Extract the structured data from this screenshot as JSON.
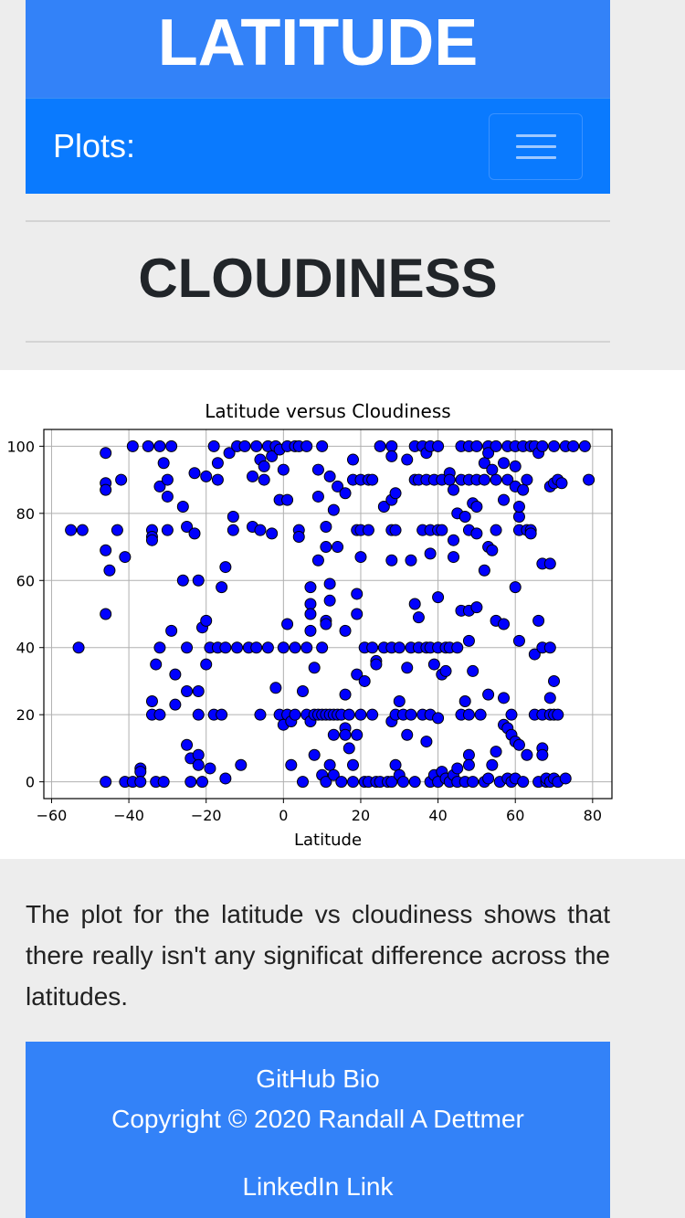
{
  "header": {
    "title": "LATITUDE"
  },
  "navbar": {
    "brand": "Plots:",
    "toggle_icon": "hamburger-icon"
  },
  "section": {
    "title": "CLOUDINESS"
  },
  "description": "The plot for the latitude vs cloudiness shows that there really isn't any significat difference across the latitudes.",
  "footer": {
    "github_link": "GitHub Bio",
    "copyright": "Copyright © 2020 Randall A Dettmer",
    "linkedin_link": "LinkedIn Link"
  },
  "colors": {
    "banner": "#3382f8",
    "navbar": "#0a7afe",
    "marker": "#0000ff",
    "marker_edge": "#000000"
  },
  "chart_data": {
    "type": "scatter",
    "title": "Latitude versus Cloudiness",
    "xlabel": "Latitude",
    "ylabel": "",
    "xlim": [
      -62,
      85
    ],
    "ylim": [
      -5,
      105
    ],
    "xticks": [
      -60,
      -40,
      -20,
      0,
      20,
      40,
      60,
      80
    ],
    "yticks": [
      0,
      20,
      40,
      60,
      80,
      100
    ],
    "grid": true,
    "points": [
      [
        -55,
        75
      ],
      [
        -52,
        75
      ],
      [
        -53,
        40
      ],
      [
        -46,
        98
      ],
      [
        -46,
        89
      ],
      [
        -46,
        87
      ],
      [
        -46,
        69
      ],
      [
        -45,
        63
      ],
      [
        -46,
        50
      ],
      [
        -46,
        0
      ],
      [
        -43,
        75
      ],
      [
        -42,
        90
      ],
      [
        -41,
        67
      ],
      [
        -41,
        0
      ],
      [
        -39,
        100
      ],
      [
        -39,
        0
      ],
      [
        -37,
        4
      ],
      [
        -37,
        3
      ],
      [
        -37,
        0
      ],
      [
        -35,
        100
      ],
      [
        -34,
        75
      ],
      [
        -34,
        73
      ],
      [
        -34,
        72
      ],
      [
        -34,
        24
      ],
      [
        -34,
        20
      ],
      [
        -33,
        35
      ],
      [
        -33,
        0
      ],
      [
        -32,
        100
      ],
      [
        -32,
        88
      ],
      [
        -32,
        40
      ],
      [
        -32,
        20
      ],
      [
        -31,
        95
      ],
      [
        -31,
        0
      ],
      [
        -30,
        90
      ],
      [
        -30,
        85
      ],
      [
        -30,
        75
      ],
      [
        -29,
        100
      ],
      [
        -29,
        45
      ],
      [
        -28,
        32
      ],
      [
        -28,
        23
      ],
      [
        -26,
        82
      ],
      [
        -26,
        60
      ],
      [
        -25,
        76
      ],
      [
        -25,
        40
      ],
      [
        -25,
        27
      ],
      [
        -25,
        11
      ],
      [
        -24,
        7
      ],
      [
        -24,
        0
      ],
      [
        -23,
        92
      ],
      [
        -23,
        74
      ],
      [
        -22,
        60
      ],
      [
        -22,
        27
      ],
      [
        -22,
        20
      ],
      [
        -22,
        8
      ],
      [
        -22,
        5
      ],
      [
        -21,
        46
      ],
      [
        -21,
        0
      ],
      [
        -20,
        91
      ],
      [
        -20,
        48
      ],
      [
        -20,
        35
      ],
      [
        -19,
        40
      ],
      [
        -19,
        4
      ],
      [
        -18,
        100
      ],
      [
        -18,
        20
      ],
      [
        -17,
        95
      ],
      [
        -17,
        90
      ],
      [
        -17,
        40
      ],
      [
        -16,
        58
      ],
      [
        -16,
        20
      ],
      [
        -15,
        64
      ],
      [
        -15,
        40
      ],
      [
        -15,
        1
      ],
      [
        -14,
        98
      ],
      [
        -13,
        79
      ],
      [
        -13,
        75
      ],
      [
        -12,
        100
      ],
      [
        -12,
        40
      ],
      [
        -11,
        5
      ],
      [
        -10,
        100
      ],
      [
        -9,
        40
      ],
      [
        -8,
        91
      ],
      [
        -8,
        76
      ],
      [
        -7,
        100
      ],
      [
        -7,
        40
      ],
      [
        -6,
        96
      ],
      [
        -6,
        75
      ],
      [
        -6,
        20
      ],
      [
        -5,
        94
      ],
      [
        -5,
        90
      ],
      [
        -4,
        100
      ],
      [
        -4,
        40
      ],
      [
        -3,
        74
      ],
      [
        -3,
        97
      ],
      [
        -2,
        100
      ],
      [
        -2,
        28
      ],
      [
        -1,
        99
      ],
      [
        -1,
        84
      ],
      [
        -1,
        20
      ],
      [
        0,
        93
      ],
      [
        0,
        40
      ],
      [
        0,
        17
      ],
      [
        1,
        100
      ],
      [
        1,
        47
      ],
      [
        1,
        84
      ],
      [
        1,
        20
      ],
      [
        2,
        5
      ],
      [
        2,
        18
      ],
      [
        3,
        100
      ],
      [
        3,
        40
      ],
      [
        3,
        20
      ],
      [
        4,
        100
      ],
      [
        4,
        75
      ],
      [
        4,
        73
      ],
      [
        5,
        0
      ],
      [
        5,
        27
      ],
      [
        6,
        100
      ],
      [
        6,
        40
      ],
      [
        6,
        20
      ],
      [
        7,
        58
      ],
      [
        7,
        53
      ],
      [
        7,
        50
      ],
      [
        7,
        45
      ],
      [
        7,
        18
      ],
      [
        8,
        34
      ],
      [
        8,
        20
      ],
      [
        8,
        8
      ],
      [
        9,
        93
      ],
      [
        9,
        85
      ],
      [
        9,
        66
      ],
      [
        9,
        20
      ],
      [
        10,
        2
      ],
      [
        10,
        100
      ],
      [
        10,
        40
      ],
      [
        10,
        20
      ],
      [
        11,
        76
      ],
      [
        11,
        70
      ],
      [
        11,
        48
      ],
      [
        11,
        47
      ],
      [
        11,
        0
      ],
      [
        11,
        20
      ],
      [
        12,
        91
      ],
      [
        12,
        59
      ],
      [
        12,
        54
      ],
      [
        12,
        5
      ],
      [
        12,
        20
      ],
      [
        13,
        81
      ],
      [
        13,
        14
      ],
      [
        13,
        2
      ],
      [
        13,
        20
      ],
      [
        14,
        88
      ],
      [
        14,
        70
      ],
      [
        14,
        20
      ],
      [
        15,
        0
      ],
      [
        15,
        20
      ],
      [
        16,
        86
      ],
      [
        16,
        45
      ],
      [
        16,
        26
      ],
      [
        16,
        16
      ],
      [
        16,
        14
      ],
      [
        17,
        20
      ],
      [
        17,
        10
      ],
      [
        18,
        96
      ],
      [
        18,
        90
      ],
      [
        18,
        5
      ],
      [
        18,
        0
      ],
      [
        19,
        75
      ],
      [
        19,
        56
      ],
      [
        19,
        50
      ],
      [
        19,
        32
      ],
      [
        19,
        14
      ],
      [
        20,
        90
      ],
      [
        20,
        75
      ],
      [
        20,
        67
      ],
      [
        20,
        20
      ],
      [
        21,
        40
      ],
      [
        21,
        30
      ],
      [
        21,
        0
      ],
      [
        22,
        90
      ],
      [
        22,
        75
      ],
      [
        22,
        0
      ],
      [
        23,
        90
      ],
      [
        23,
        40
      ],
      [
        23,
        20
      ],
      [
        24,
        36
      ],
      [
        24,
        35
      ],
      [
        24,
        0
      ],
      [
        25,
        100
      ],
      [
        25,
        0
      ],
      [
        26,
        82
      ],
      [
        26,
        40
      ],
      [
        27,
        0
      ],
      [
        28,
        100
      ],
      [
        28,
        97
      ],
      [
        28,
        84
      ],
      [
        28,
        75
      ],
      [
        28,
        66
      ],
      [
        28,
        40
      ],
      [
        28,
        18
      ],
      [
        28,
        0
      ],
      [
        29,
        86
      ],
      [
        29,
        75
      ],
      [
        29,
        5
      ],
      [
        29,
        20
      ],
      [
        30,
        40
      ],
      [
        30,
        24
      ],
      [
        30,
        2
      ],
      [
        31,
        0
      ],
      [
        31,
        20
      ],
      [
        32,
        96
      ],
      [
        32,
        34
      ],
      [
        32,
        14
      ],
      [
        33,
        66
      ],
      [
        33,
        40
      ],
      [
        33,
        20
      ],
      [
        34,
        100
      ],
      [
        34,
        90
      ],
      [
        34,
        53
      ],
      [
        34,
        0
      ],
      [
        35,
        90
      ],
      [
        35,
        49
      ],
      [
        35,
        40
      ],
      [
        36,
        100
      ],
      [
        36,
        75
      ],
      [
        36,
        20
      ],
      [
        37,
        98
      ],
      [
        37,
        90
      ],
      [
        37,
        40
      ],
      [
        37,
        12
      ],
      [
        38,
        100
      ],
      [
        38,
        75
      ],
      [
        38,
        68
      ],
      [
        38,
        40
      ],
      [
        38,
        20
      ],
      [
        38,
        0
      ],
      [
        39,
        90
      ],
      [
        39,
        35
      ],
      [
        39,
        2
      ],
      [
        40,
        100
      ],
      [
        40,
        75
      ],
      [
        40,
        55
      ],
      [
        40,
        40
      ],
      [
        40,
        19
      ],
      [
        40,
        0
      ],
      [
        41,
        90
      ],
      [
        41,
        75
      ],
      [
        41,
        32
      ],
      [
        41,
        3
      ],
      [
        42,
        40
      ],
      [
        42,
        33
      ],
      [
        42,
        1
      ],
      [
        43,
        92
      ],
      [
        43,
        90
      ],
      [
        43,
        40
      ],
      [
        43,
        0
      ],
      [
        44,
        87
      ],
      [
        44,
        72
      ],
      [
        44,
        67
      ],
      [
        44,
        2
      ],
      [
        45,
        80
      ],
      [
        45,
        40
      ],
      [
        45,
        4
      ],
      [
        45,
        0
      ],
      [
        46,
        100
      ],
      [
        46,
        90
      ],
      [
        46,
        51
      ],
      [
        46,
        20
      ],
      [
        47,
        24
      ],
      [
        47,
        79
      ],
      [
        47,
        0
      ],
      [
        48,
        100
      ],
      [
        48,
        90
      ],
      [
        48,
        75
      ],
      [
        48,
        51
      ],
      [
        48,
        42
      ],
      [
        48,
        8
      ],
      [
        48,
        5
      ],
      [
        48,
        20
      ],
      [
        49,
        33
      ],
      [
        49,
        83
      ],
      [
        49,
        0
      ],
      [
        50,
        100
      ],
      [
        50,
        90
      ],
      [
        50,
        74
      ],
      [
        50,
        52
      ],
      [
        50,
        82
      ],
      [
        51,
        20
      ],
      [
        52,
        95
      ],
      [
        52,
        90
      ],
      [
        52,
        63
      ],
      [
        52,
        0
      ],
      [
        53,
        100
      ],
      [
        53,
        98
      ],
      [
        53,
        70
      ],
      [
        53,
        26
      ],
      [
        53,
        1
      ],
      [
        54,
        93
      ],
      [
        54,
        69
      ],
      [
        54,
        5
      ],
      [
        55,
        100
      ],
      [
        55,
        90
      ],
      [
        55,
        75
      ],
      [
        55,
        48
      ],
      [
        55,
        9
      ],
      [
        56,
        0
      ],
      [
        57,
        95
      ],
      [
        57,
        84
      ],
      [
        57,
        47
      ],
      [
        57,
        25
      ],
      [
        57,
        17
      ],
      [
        58,
        100
      ],
      [
        58,
        90
      ],
      [
        58,
        16
      ],
      [
        58,
        1
      ],
      [
        59,
        20
      ],
      [
        59,
        14
      ],
      [
        59,
        0
      ],
      [
        60,
        100
      ],
      [
        60,
        94
      ],
      [
        60,
        88
      ],
      [
        60,
        58
      ],
      [
        60,
        12
      ],
      [
        60,
        1
      ],
      [
        61,
        79
      ],
      [
        61,
        82
      ],
      [
        61,
        75
      ],
      [
        61,
        42
      ],
      [
        61,
        11
      ],
      [
        62,
        100
      ],
      [
        62,
        87
      ],
      [
        62,
        0
      ],
      [
        63,
        90
      ],
      [
        63,
        75
      ],
      [
        63,
        8
      ],
      [
        64,
        100
      ],
      [
        64,
        75
      ],
      [
        64,
        74
      ],
      [
        65,
        100
      ],
      [
        65,
        38
      ],
      [
        65,
        20
      ],
      [
        66,
        98
      ],
      [
        66,
        48
      ],
      [
        66,
        0
      ],
      [
        67,
        100
      ],
      [
        67,
        65
      ],
      [
        67,
        40
      ],
      [
        67,
        20
      ],
      [
        67,
        10
      ],
      [
        67,
        8
      ],
      [
        68,
        0
      ],
      [
        68,
        1
      ],
      [
        69,
        88
      ],
      [
        69,
        65
      ],
      [
        69,
        40
      ],
      [
        69,
        25
      ],
      [
        69,
        20
      ],
      [
        69,
        0
      ],
      [
        70,
        100
      ],
      [
        70,
        89
      ],
      [
        70,
        30
      ],
      [
        70,
        20
      ],
      [
        70,
        1
      ],
      [
        71,
        90
      ],
      [
        71,
        20
      ],
      [
        71,
        0
      ],
      [
        72,
        89
      ],
      [
        73,
        100
      ],
      [
        73,
        1
      ],
      [
        75,
        100
      ],
      [
        78,
        100
      ],
      [
        79,
        90
      ]
    ]
  }
}
